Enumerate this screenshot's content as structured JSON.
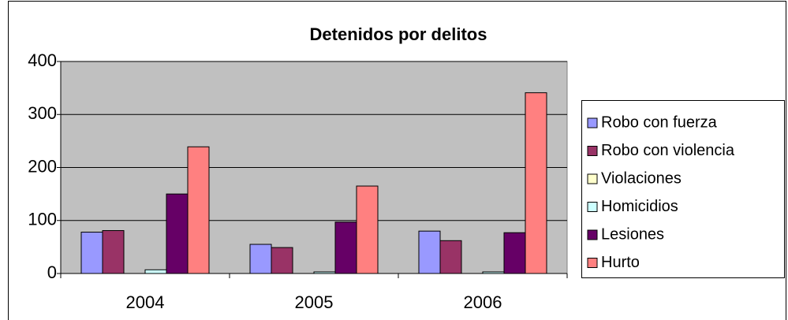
{
  "chart_data": {
    "type": "bar",
    "title": "Detenidos por delitos",
    "categories": [
      "2004",
      "2005",
      "2006"
    ],
    "series": [
      {
        "name": "Robo con fuerza",
        "color": "#9999FF",
        "values": [
          78,
          55,
          80
        ]
      },
      {
        "name": "Robo con violencia",
        "color": "#993366",
        "values": [
          81,
          49,
          62
        ]
      },
      {
        "name": "Violaciones",
        "color": "#FFFFCC",
        "values": [
          0,
          0,
          0
        ]
      },
      {
        "name": "Homicidios",
        "color": "#CCFFFF",
        "values": [
          7,
          3,
          3
        ]
      },
      {
        "name": "Lesiones",
        "color": "#660066",
        "values": [
          150,
          97,
          77
        ]
      },
      {
        "name": "Hurto",
        "color": "#FF8080",
        "values": [
          239,
          165,
          341
        ]
      }
    ],
    "ylim": [
      0,
      400
    ],
    "yticks": [
      0,
      100,
      200,
      300,
      400
    ],
    "grid": true,
    "legend": "right"
  }
}
